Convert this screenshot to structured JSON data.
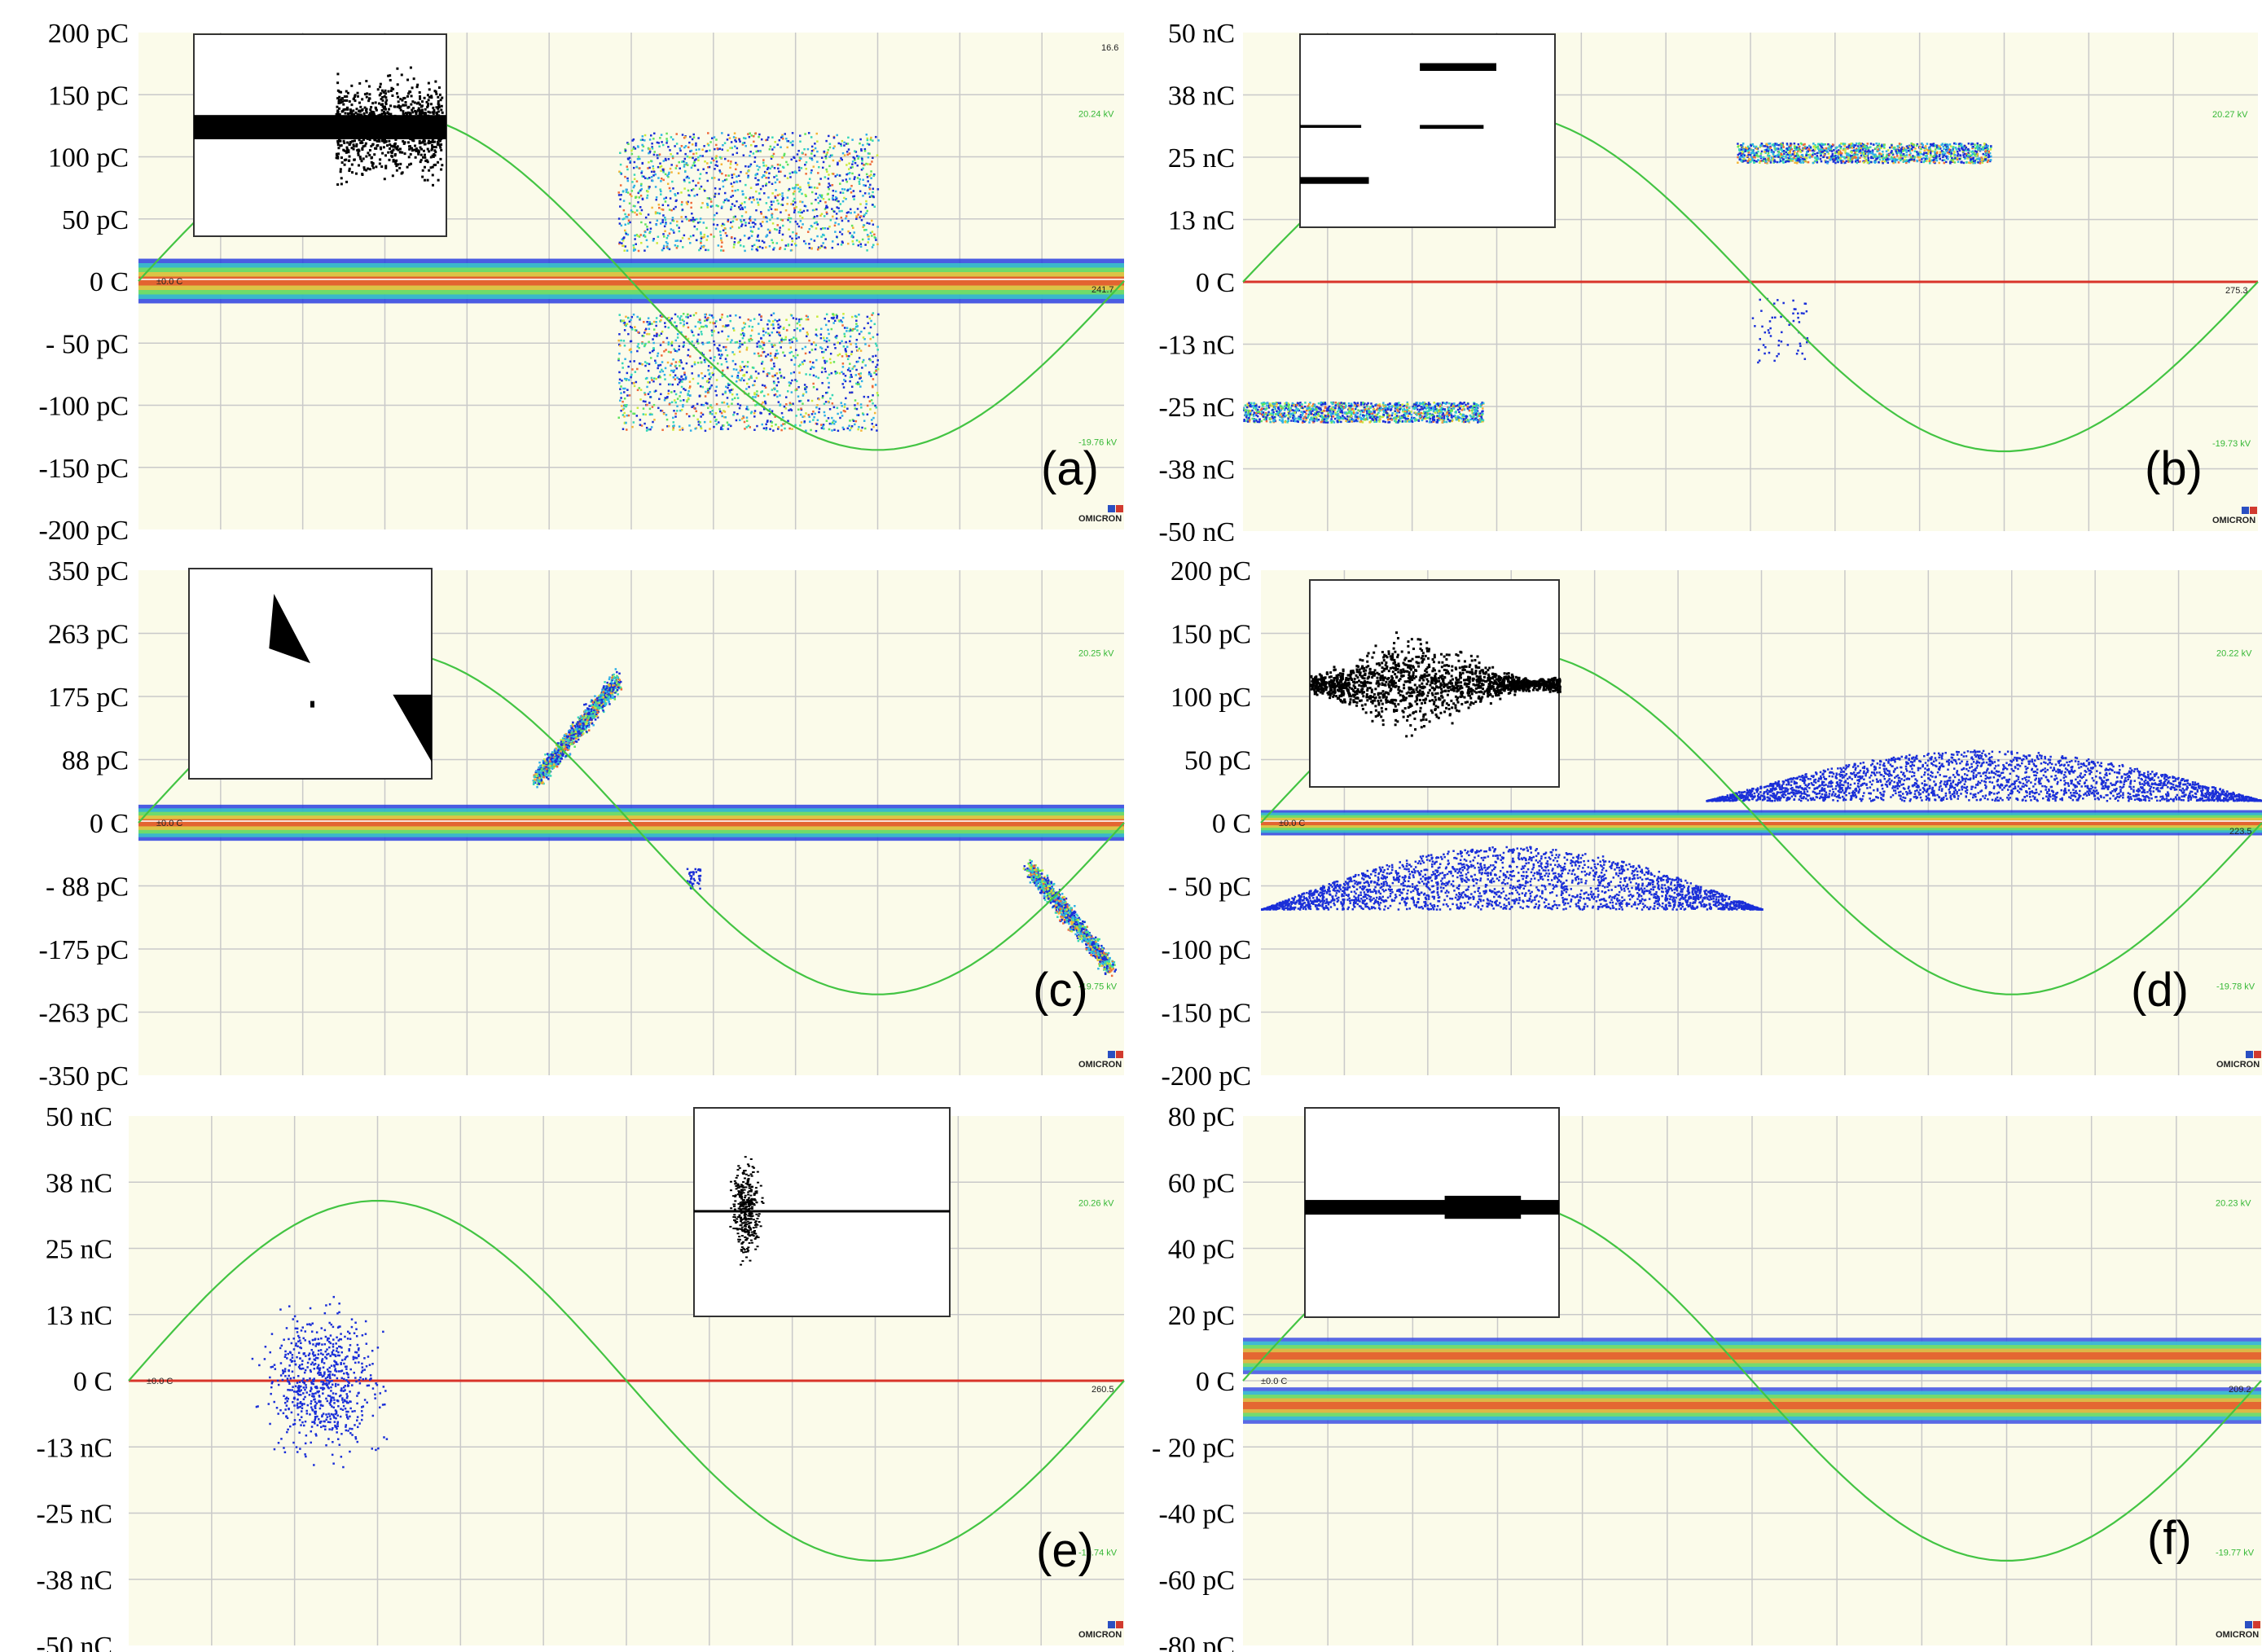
{
  "colors": {
    "plot_bg": "#fbfbea",
    "grid": "#c9c9c9",
    "sine": "#43c443",
    "baseline": "#d8342a",
    "scatter": "#1a2fd8",
    "inset_ink": "#000000"
  },
  "chart_data": [
    {
      "id": "a",
      "type": "scatter",
      "panel_label": "(a)",
      "title": "",
      "xlabel": "",
      "ylabel": "",
      "ylim": [
        -200,
        200
      ],
      "unit": "pC",
      "ytick_labels": [
        "200 pC",
        "150 pC",
        "100 pC",
        "50 pC",
        "0 C",
        "- 50 pC",
        "-100 pC",
        "-150 pC",
        "-200 pC"
      ],
      "zero_marker": "±0.0 C",
      "voltage_labels": [
        "20.24 kV",
        "-19.76 kV"
      ],
      "corner_value": "16.6",
      "right_value": "241.7",
      "logo": "OMICRON",
      "x_phase_range_deg": [
        0,
        360
      ],
      "gridlines": {
        "vertical": 12,
        "horizontal": 8
      },
      "baseline_band_pc": 18,
      "clusters": [
        {
          "phase": [
            175,
            270
          ],
          "charge": [
            25,
            120
          ],
          "style": "heat-cloud"
        },
        {
          "phase": [
            175,
            270
          ],
          "charge": [
            -120,
            -25
          ],
          "style": "heat-cloud"
        }
      ],
      "inset": {
        "style": "black-bar-with-burst"
      }
    },
    {
      "id": "b",
      "type": "scatter",
      "panel_label": "(b)",
      "title": "",
      "xlabel": "",
      "ylabel": "",
      "ylim": [
        -50,
        50
      ],
      "unit": "nC",
      "ytick_labels": [
        "50 nC",
        "38 nC",
        "25 nC",
        "13 nC",
        "0 C",
        "-13 nC",
        "-25 nC",
        "-38 nC",
        "-50 nC"
      ],
      "zero_marker": "",
      "voltage_labels": [
        "20.27 kV",
        "-19.73 kV"
      ],
      "right_value": "275.3",
      "logo": "OMICRON",
      "x_phase_range_deg": [
        0,
        360
      ],
      "gridlines": {
        "vertical": 12,
        "horizontal": 8
      },
      "baseline_band_pc": 0.4,
      "clusters": [
        {
          "phase": [
            175,
            265
          ],
          "charge": [
            24,
            28
          ],
          "style": "cyan-strip"
        },
        {
          "phase": [
            0,
            85
          ],
          "charge": [
            -28,
            -24
          ],
          "style": "cyan-strip"
        },
        {
          "phase": [
            180,
            200
          ],
          "charge": [
            -16,
            -3
          ],
          "style": "sparse"
        }
      ],
      "inset": {
        "style": "pulse-pairs"
      }
    },
    {
      "id": "c",
      "type": "scatter",
      "panel_label": "(c)",
      "title": "",
      "xlabel": "",
      "ylabel": "",
      "ylim": [
        -350,
        350
      ],
      "unit": "pC",
      "ytick_labels": [
        "350 pC",
        "263 pC",
        "175 pC",
        "88 pC",
        "0 C",
        "- 88 pC",
        "-175 pC",
        "-263 pC",
        "-350 pC"
      ],
      "zero_marker": "±0.0 C",
      "voltage_labels": [
        "20.25 kV",
        "-19.75 kV"
      ],
      "logo": "OMICRON",
      "x_phase_range_deg": [
        0,
        360
      ],
      "gridlines": {
        "vertical": 12,
        "horizontal": 8
      },
      "baseline_band_pc": 25,
      "clusters": [
        {
          "phase": [
            145,
            175
          ],
          "charge": [
            60,
            200
          ],
          "style": "diag-up"
        },
        {
          "phase": [
            325,
            355
          ],
          "charge": [
            -200,
            -60
          ],
          "style": "diag-down"
        },
        {
          "phase": [
            200,
            205
          ],
          "charge": [
            -90,
            -60
          ],
          "style": "spot"
        }
      ],
      "inset": {
        "style": "sparse-blobs"
      }
    },
    {
      "id": "d",
      "type": "scatter",
      "panel_label": "(d)",
      "title": "",
      "xlabel": "",
      "ylabel": "",
      "ylim": [
        -200,
        200
      ],
      "unit": "pC",
      "ytick_labels": [
        "200 pC",
        "150 pC",
        "100 pC",
        "50 pC",
        "0 C",
        "- 50 pC",
        "-100 pC",
        "-150 pC",
        "-200 pC"
      ],
      "zero_marker": "±0.0 C",
      "voltage_labels": [
        "20.22 kV",
        "-19.78 kV"
      ],
      "right_value": "223.5",
      "logo": "OMICRON",
      "x_phase_range_deg": [
        0,
        360
      ],
      "gridlines": {
        "vertical": 12,
        "horizontal": 8
      },
      "baseline_band_pc": 10,
      "clusters": [
        {
          "phase": [
            0,
            180
          ],
          "charge": [
            -60,
            -10
          ],
          "style": "sine-envelope-neg"
        },
        {
          "phase": [
            160,
            360
          ],
          "charge": [
            10,
            50
          ],
          "style": "sine-envelope-pos"
        }
      ],
      "inset": {
        "style": "black-wave"
      }
    },
    {
      "id": "e",
      "type": "scatter",
      "panel_label": "(e)",
      "title": "",
      "xlabel": "",
      "ylabel": "",
      "ylim": [
        -50,
        50
      ],
      "unit": "nC",
      "ytick_labels": [
        "50 nC",
        "38 nC",
        "25 nC",
        "13 nC",
        "0 C",
        "-13 nC",
        "-25 nC",
        "-38 nC",
        "-50 nC"
      ],
      "zero_marker": "±0.0 C",
      "voltage_labels": [
        "20.26 kV",
        "-19.74 kV"
      ],
      "right_value": "260.5",
      "logo": "OMICRON",
      "x_phase_range_deg": [
        0,
        360
      ],
      "gridlines": {
        "vertical": 12,
        "horizontal": 8
      },
      "baseline_band_pc": 0.3,
      "clusters": [
        {
          "phase": [
            20,
            120
          ],
          "charge": [
            -35,
            35
          ],
          "style": "sparse-cloud"
        }
      ],
      "inset": {
        "style": "spike-burst"
      }
    },
    {
      "id": "f",
      "type": "scatter",
      "panel_label": "(f)",
      "title": "",
      "xlabel": "",
      "ylabel": "",
      "ylim": [
        -80,
        80
      ],
      "unit": "pC",
      "ytick_labels": [
        "80 pC",
        "60 pC",
        "40 pC",
        "20 pC",
        "0 C",
        "- 20 pC",
        "-40 pC",
        "-60 pC",
        "-80 pC"
      ],
      "zero_marker": "±0.0 C",
      "voltage_labels": [
        "20.23 kV",
        "-19.77 kV"
      ],
      "right_value": "209.2",
      "logo": "OMICRON",
      "x_phase_range_deg": [
        0,
        360
      ],
      "gridlines": {
        "vertical": 12,
        "horizontal": 8
      },
      "bands": [
        {
          "charge": [
            2,
            13
          ],
          "phase": [
            0,
            360
          ]
        },
        {
          "charge": [
            -13,
            -2
          ],
          "phase": [
            0,
            360
          ]
        }
      ],
      "inset": {
        "style": "black-thick-bar"
      }
    }
  ]
}
